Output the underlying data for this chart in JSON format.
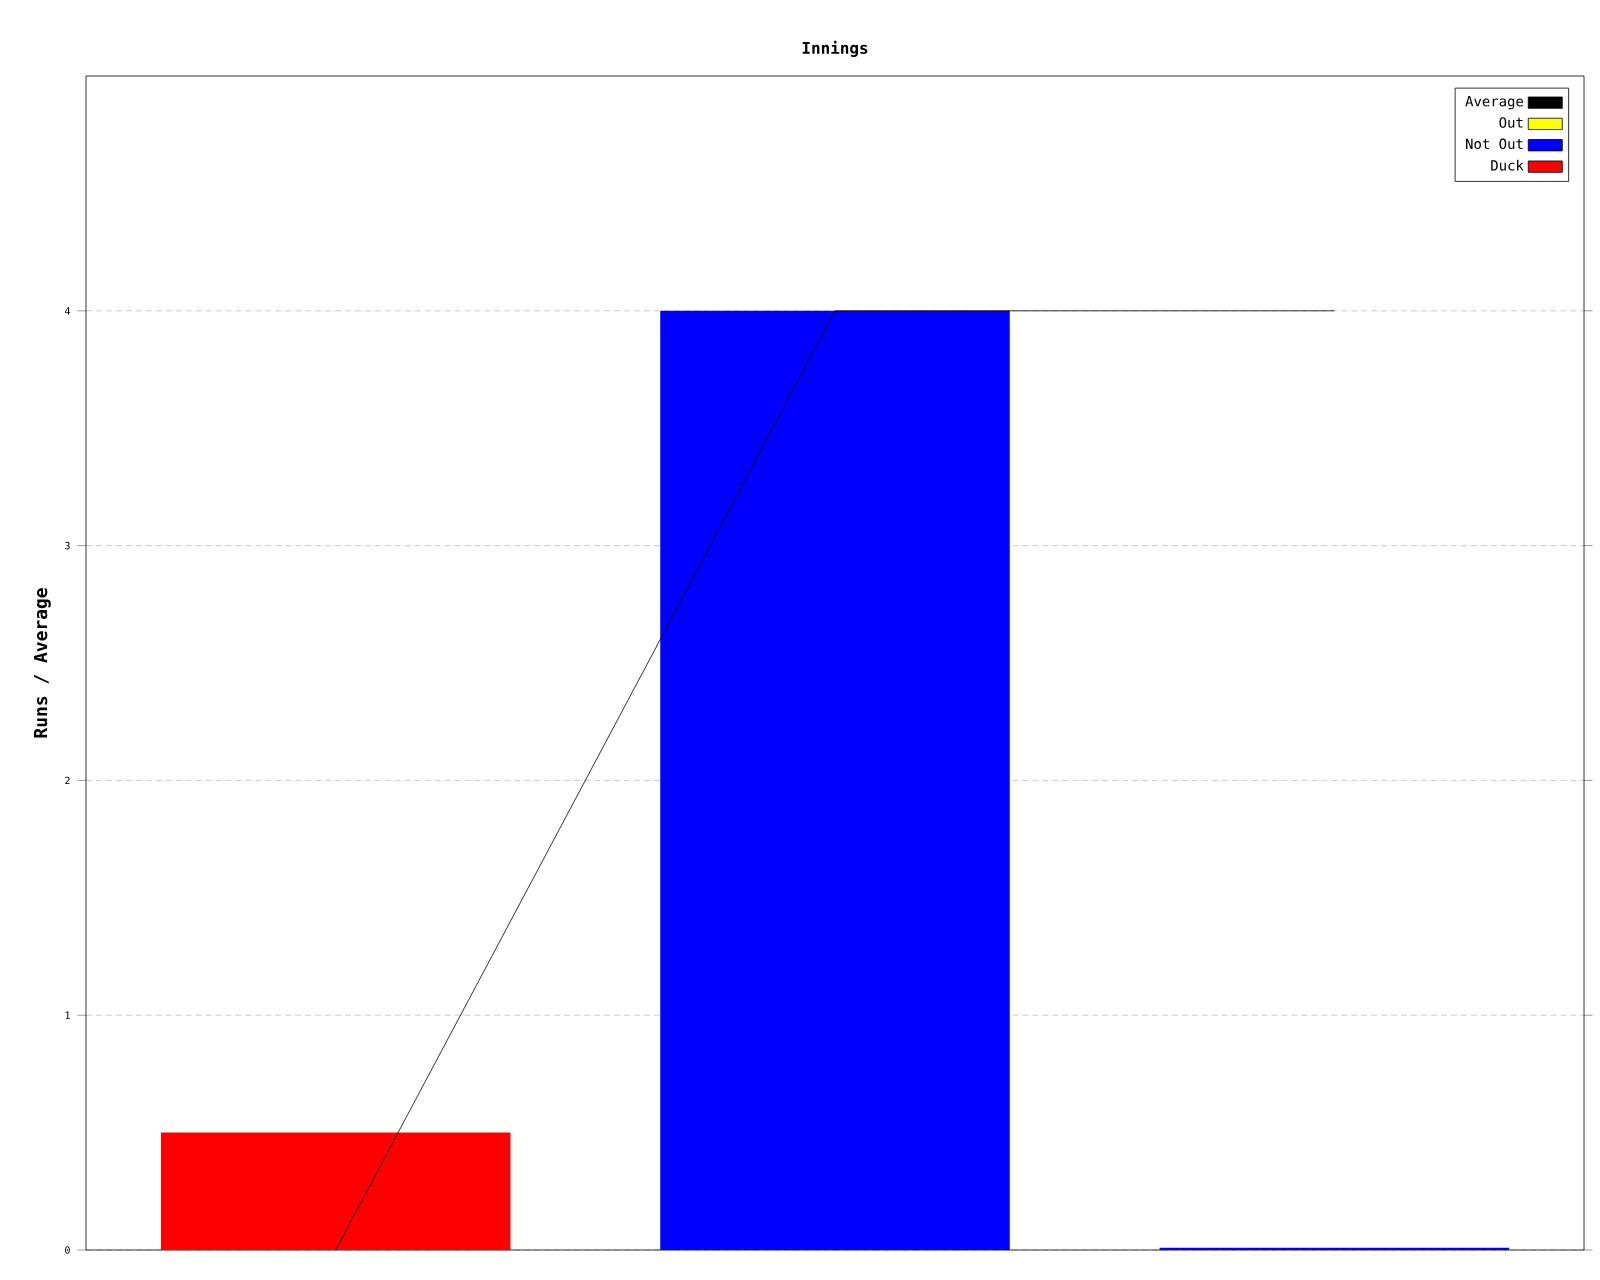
{
  "chart_data": {
    "type": "bar",
    "title": "Innings",
    "ylabel": "Runs / Average",
    "categories": [
      null,
      null,
      null
    ],
    "series": [
      {
        "name": "Average",
        "type": "line",
        "color": "#000000",
        "values": [
          0,
          4,
          4
        ]
      },
      {
        "name": "Out",
        "color": "#ffff00",
        "values": [
          null,
          null,
          null
        ]
      },
      {
        "name": "Not Out",
        "color": "#0000ff",
        "values": [
          null,
          4,
          0.01
        ]
      },
      {
        "name": "Duck",
        "color": "#ff0000",
        "values": [
          0.5,
          null,
          null
        ]
      }
    ],
    "ylim": [
      0,
      5
    ],
    "yticks": [
      0,
      1,
      2,
      3,
      4
    ],
    "grid": "y",
    "legend": "top right",
    "marker": "none"
  }
}
